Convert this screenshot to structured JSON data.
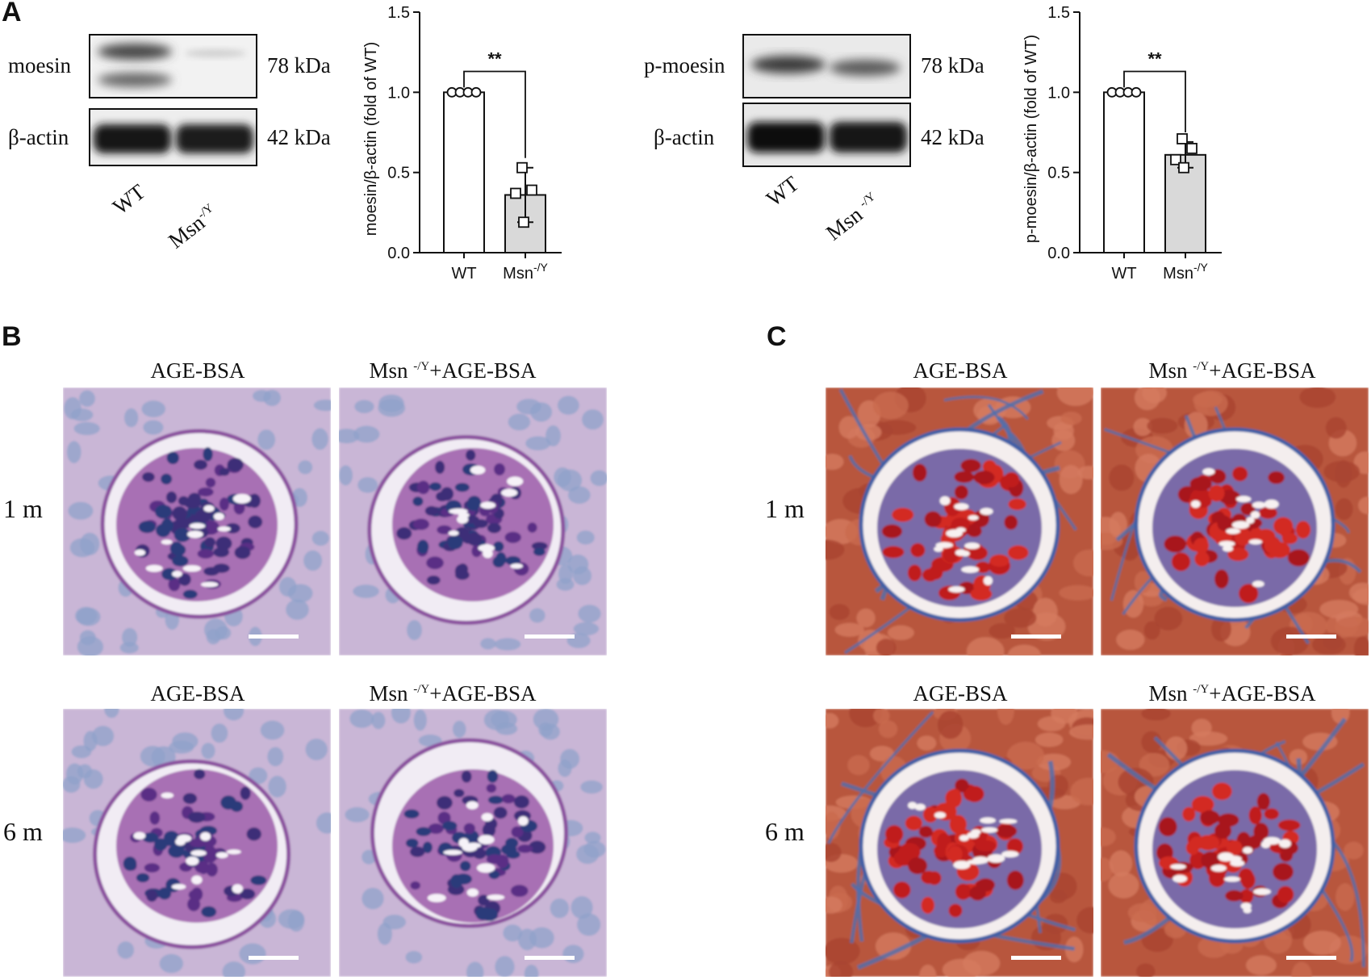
{
  "panels": {
    "a": {
      "letter": "A",
      "blots_left": {
        "rows": [
          {
            "label": "moesin",
            "kda": "78 kDa"
          },
          {
            "label": "β-actin",
            "kda": "42 kDa"
          }
        ],
        "lanes": [
          "WT",
          "Msn",
          "-/Y"
        ]
      },
      "blots_right": {
        "rows": [
          {
            "label": "p-moesin",
            "kda": "78 kDa"
          },
          {
            "label": "β-actin",
            "kda": "42 kDa"
          }
        ],
        "lanes": [
          "WT",
          "Msn ",
          "-/Y"
        ]
      }
    },
    "b": {
      "letter": "B",
      "rows": [
        "1 m",
        "6 m"
      ],
      "cols": [
        "AGE-BSA",
        "Msn ",
        "-/Y",
        "+AGE-BSA"
      ],
      "stain": "PAS"
    },
    "c": {
      "letter": "C",
      "rows": [
        "1 m",
        "6 m"
      ],
      "cols": [
        "AGE-BSA",
        "Msn ",
        "-/Y",
        "+AGE-BSA"
      ],
      "stain": "Masson trichrome"
    }
  },
  "chart_data": [
    {
      "type": "bar",
      "ylabel": "moesin/β-actin (fold of WT)",
      "categories": [
        "WT",
        "Msn"
      ],
      "category_sup": [
        "",
        "-/Y"
      ],
      "values": [
        1.0,
        0.36
      ],
      "errors": [
        0.0,
        0.17
      ],
      "points": [
        [
          1.0,
          1.0,
          1.0,
          1.0
        ],
        [
          0.53,
          0.39,
          0.37,
          0.19
        ]
      ],
      "ylim": [
        0,
        1.5
      ],
      "yticks": [
        "0.0",
        "0.5",
        "1.0",
        "1.5"
      ],
      "significance": "**",
      "bar_colors": [
        "#ffffff",
        "#d9d9d9"
      ]
    },
    {
      "type": "bar",
      "ylabel": "p-moesin/β-actin (fold of WT)",
      "categories": [
        "WT",
        "Msn"
      ],
      "category_sup": [
        "",
        "-/Y"
      ],
      "values": [
        1.0,
        0.61
      ],
      "errors": [
        0.0,
        0.08
      ],
      "points": [
        [
          1.0,
          1.0,
          1.0,
          1.0
        ],
        [
          0.71,
          0.65,
          0.58,
          0.53
        ]
      ],
      "ylim": [
        0,
        1.5
      ],
      "yticks": [
        "0.0",
        "0.5",
        "1.0",
        "1.5"
      ],
      "significance": "**",
      "bar_colors": [
        "#ffffff",
        "#d9d9d9"
      ]
    }
  ]
}
